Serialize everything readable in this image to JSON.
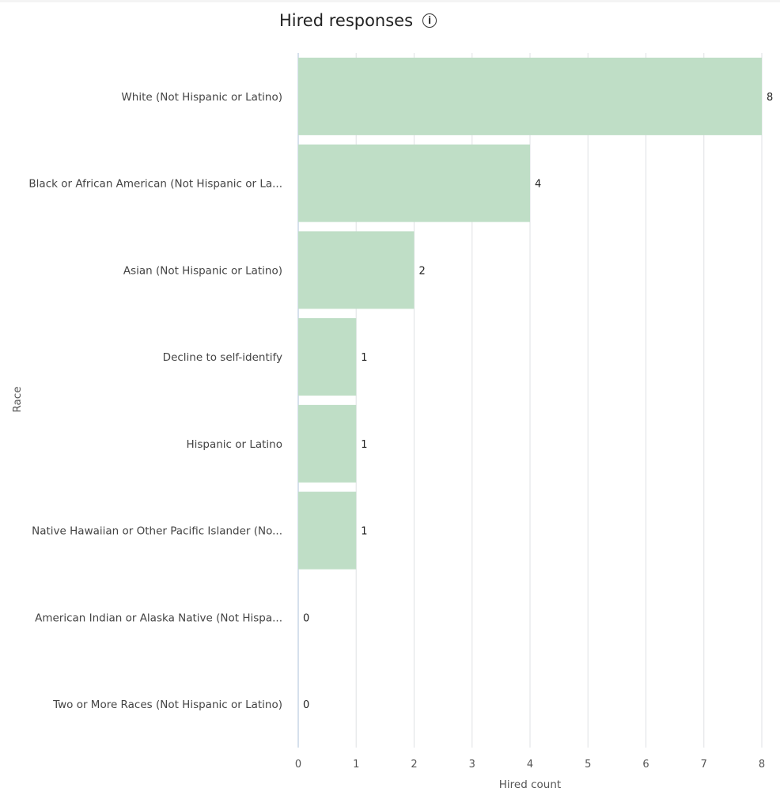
{
  "title": "Hired responses",
  "title_icon": "info-icon",
  "chart_data": {
    "type": "bar",
    "orientation": "horizontal",
    "title": "Hired responses",
    "xlabel": "Hired count",
    "ylabel": "Race",
    "xlim": [
      0,
      8
    ],
    "xticks": [
      "0",
      "1",
      "2",
      "3",
      "4",
      "5",
      "6",
      "7",
      "8"
    ],
    "grid": true,
    "bar_color": "#bfdec6",
    "categories": [
      "White (Not Hispanic or Latino)",
      "Black or African American (Not Hispanic or La...",
      "Asian (Not Hispanic or Latino)",
      "Decline to self-identify",
      "Hispanic or Latino",
      "Native Hawaiian or Other Pacific Islander (No...",
      "American Indian or Alaska Native (Not Hispa...",
      "Two or More Races (Not Hispanic or Latino)"
    ],
    "values": [
      8,
      4,
      2,
      1,
      1,
      1,
      0,
      0
    ]
  }
}
